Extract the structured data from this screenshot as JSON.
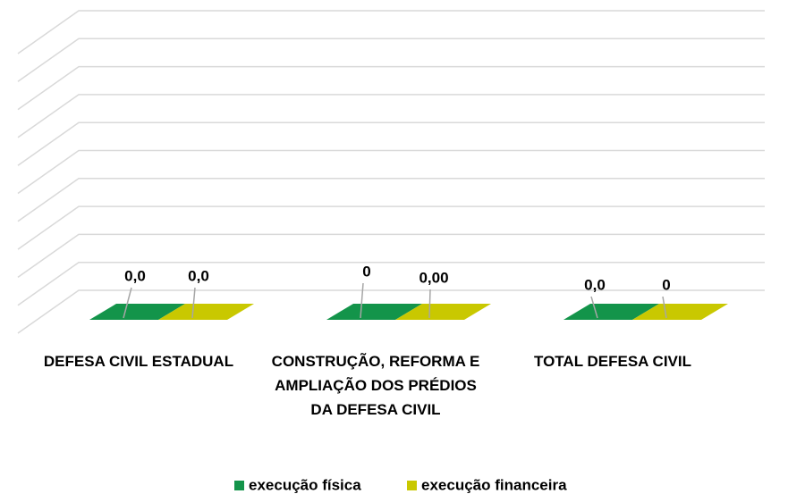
{
  "chart_data": {
    "type": "bar3d",
    "categories": [
      "DEFESA CIVIL ESTADUAL",
      "CONSTRUÇÃO, REFORMA E AMPLIAÇÃO DOS PRÉDIOS DA DEFESA CIVIL",
      "TOTAL DEFESA CIVIL"
    ],
    "series": [
      {
        "name": "execução física",
        "color": "#13944a",
        "values": [
          0,
          0,
          0
        ],
        "value_labels": [
          "0,0",
          "0",
          "0,0"
        ]
      },
      {
        "name": "execução financeira",
        "color": "#c9c800",
        "values": [
          0,
          0,
          0
        ],
        "value_labels": [
          "0,0",
          "0,00",
          "0"
        ]
      }
    ],
    "grid": true,
    "legend": "bottom"
  }
}
